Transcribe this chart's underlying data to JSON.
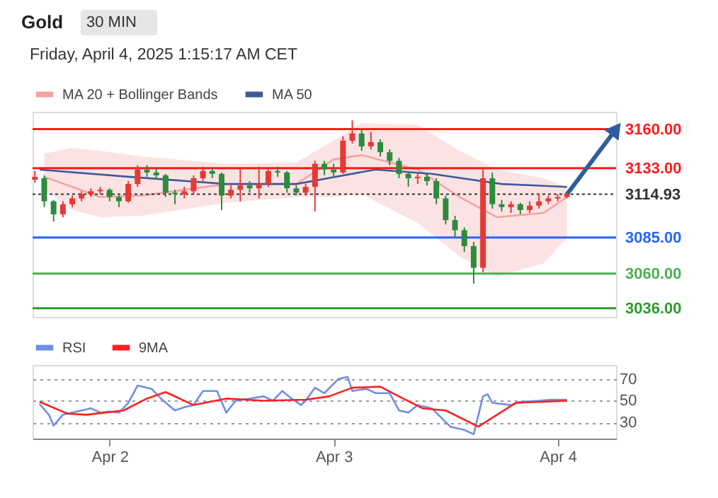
{
  "chart_data": [
    {
      "type": "candlestick",
      "title": "Gold",
      "subtitle": "Friday, April 4, 2025 1:15:17 AM CET",
      "annotations": [
        "30 MIN"
      ],
      "x": [
        "2025-04-01T16:00",
        "2025-04-01T17:00",
        "2025-04-01T18:00",
        "2025-04-01T19:00",
        "2025-04-01T20:00",
        "2025-04-01T21:00",
        "2025-04-01T22:00",
        "2025-04-01T23:00",
        "2025-04-02T00:00",
        "2025-04-02T01:00",
        "2025-04-02T02:00",
        "2025-04-02T03:00",
        "2025-04-02T04:00",
        "2025-04-02T05:00",
        "2025-04-02T06:00",
        "2025-04-02T07:00",
        "2025-04-02T08:00",
        "2025-04-02T09:00",
        "2025-04-02T10:00",
        "2025-04-02T11:00",
        "2025-04-02T12:00",
        "2025-04-02T13:00",
        "2025-04-02T14:00",
        "2025-04-02T15:00",
        "2025-04-02T16:00",
        "2025-04-02T17:00",
        "2025-04-02T18:00",
        "2025-04-02T19:00",
        "2025-04-02T20:00",
        "2025-04-02T21:00",
        "2025-04-02T22:00",
        "2025-04-02T23:00",
        "2025-04-03T00:00",
        "2025-04-03T01:00",
        "2025-04-03T02:00",
        "2025-04-03T03:00",
        "2025-04-03T04:00",
        "2025-04-03T05:00",
        "2025-04-03T06:00",
        "2025-04-03T07:00",
        "2025-04-03T08:00",
        "2025-04-03T09:00",
        "2025-04-03T10:00",
        "2025-04-03T11:00",
        "2025-04-03T12:00",
        "2025-04-03T13:00",
        "2025-04-03T14:00",
        "2025-04-03T15:00",
        "2025-04-03T16:00",
        "2025-04-03T17:00",
        "2025-04-03T18:00",
        "2025-04-03T19:00",
        "2025-04-03T20:00",
        "2025-04-03T21:00",
        "2025-04-03T22:00",
        "2025-04-03T23:00",
        "2025-04-04T00:00",
        "2025-04-04T01:00"
      ],
      "ohlc": [
        [
          3125,
          3131,
          3123,
          3127
        ],
        [
          3126,
          3128,
          3106,
          3110
        ],
        [
          3110,
          3111,
          3096,
          3101
        ],
        [
          3101,
          3110,
          3099,
          3108
        ],
        [
          3108,
          3114,
          3106,
          3112
        ],
        [
          3112,
          3117,
          3110,
          3115
        ],
        [
          3115,
          3119,
          3113,
          3117
        ],
        [
          3117,
          3120,
          3115,
          3118
        ],
        [
          3118,
          3119,
          3110,
          3113
        ],
        [
          3113,
          3114,
          3106,
          3110
        ],
        [
          3110,
          3124,
          3109,
          3122
        ],
        [
          3122,
          3135,
          3120,
          3132
        ],
        [
          3132,
          3135,
          3127,
          3130
        ],
        [
          3130,
          3133,
          3125,
          3128
        ],
        [
          3128,
          3129,
          3113,
          3116
        ],
        [
          3116,
          3118,
          3108,
          3115
        ],
        [
          3115,
          3120,
          3112,
          3117
        ],
        [
          3117,
          3128,
          3115,
          3126
        ],
        [
          3126,
          3134,
          3124,
          3131
        ],
        [
          3131,
          3133,
          3126,
          3129
        ],
        [
          3129,
          3130,
          3104,
          3114
        ],
        [
          3114,
          3121,
          3112,
          3118
        ],
        [
          3118,
          3133,
          3110,
          3121
        ],
        [
          3121,
          3124,
          3116,
          3119
        ],
        [
          3119,
          3134,
          3112,
          3122
        ],
        [
          3122,
          3133,
          3120,
          3131
        ],
        [
          3131,
          3134,
          3127,
          3130
        ],
        [
          3130,
          3131,
          3116,
          3119
        ],
        [
          3119,
          3121,
          3114,
          3116
        ],
        [
          3116,
          3122,
          3114,
          3120
        ],
        [
          3120,
          3138,
          3103,
          3136
        ],
        [
          3136,
          3138,
          3128,
          3132
        ],
        [
          3132,
          3136,
          3126,
          3130
        ],
        [
          3130,
          3155,
          3129,
          3152
        ],
        [
          3152,
          3166,
          3150,
          3157
        ],
        [
          3157,
          3160,
          3145,
          3148
        ],
        [
          3148,
          3158,
          3146,
          3151
        ],
        [
          3151,
          3153,
          3141,
          3144
        ],
        [
          3144,
          3146,
          3135,
          3138
        ],
        [
          3138,
          3140,
          3126,
          3129
        ],
        [
          3129,
          3131,
          3120,
          3126
        ],
        [
          3126,
          3130,
          3122,
          3127
        ],
        [
          3127,
          3129,
          3121,
          3124
        ],
        [
          3124,
          3126,
          3108,
          3112
        ],
        [
          3112,
          3114,
          3094,
          3097
        ],
        [
          3097,
          3100,
          3085,
          3090
        ],
        [
          3090,
          3092,
          3075,
          3079
        ],
        [
          3079,
          3082,
          3053,
          3064
        ],
        [
          3064,
          3133,
          3061,
          3126
        ],
        [
          3126,
          3130,
          3105,
          3108
        ],
        [
          3108,
          3111,
          3103,
          3106
        ],
        [
          3106,
          3110,
          3102,
          3108
        ],
        [
          3108,
          3109,
          3101,
          3104
        ],
        [
          3104,
          3110,
          3102,
          3107
        ],
        [
          3107,
          3115,
          3105,
          3110
        ],
        [
          3110,
          3114,
          3108,
          3112
        ],
        [
          3112,
          3115,
          3110,
          3113
        ],
        [
          3113,
          3116,
          3112,
          3114.93
        ]
      ],
      "colors": [
        "#e53935",
        "#2e8b3e",
        "#2e8b3e",
        "#e53935",
        "#e53935",
        "#e53935",
        "#e53935",
        "#e53935",
        "#2e8b3e",
        "#2e8b3e",
        "#e53935",
        "#e53935",
        "#2e8b3e",
        "#2e8b3e",
        "#2e8b3e",
        "#2e8b3e",
        "#e53935",
        "#e53935",
        "#e53935",
        "#2e8b3e",
        "#2e8b3e",
        "#e53935",
        "#e53935",
        "#2e8b3e",
        "#e53935",
        "#e53935",
        "#2e8b3e",
        "#2e8b3e",
        "#2e8b3e",
        "#e53935",
        "#e53935",
        "#2e8b3e",
        "#2e8b3e",
        "#e53935",
        "#e53935",
        "#2e8b3e",
        "#e53935",
        "#2e8b3e",
        "#2e8b3e",
        "#2e8b3e",
        "#2e8b3e",
        "#e53935",
        "#2e8b3e",
        "#2e8b3e",
        "#2e8b3e",
        "#2e8b3e",
        "#2e8b3e",
        "#2e8b3e",
        "#e53935",
        "#2e8b3e",
        "#2e8b3e",
        "#e53935",
        "#2e8b3e",
        "#e53935",
        "#e53935",
        "#e53935",
        "#e53935",
        "#e53935"
      ],
      "series": [
        {
          "name": "MA 20 + Bollinger Bands",
          "type": "line",
          "color": "#f4a3a3",
          "x": [
            "2025-04-01T17:00",
            "2025-04-01T20:00",
            "2025-04-01T23:00",
            "2025-04-02T03:30",
            "2025-04-02T12:30",
            "2025-04-02T20:00",
            "2025-04-03T00:00",
            "2025-04-03T03:00",
            "2025-04-03T09:00",
            "2025-04-03T13:30",
            "2025-04-03T17:30",
            "2025-04-03T22:30",
            "2025-04-04T01:00"
          ],
          "values": [
            3127,
            3120,
            3113,
            3114,
            3122,
            3122,
            3139,
            3142,
            3132,
            3113,
            3099,
            3102,
            3113
          ],
          "lower": [
            3118,
            3104,
            3099,
            3100,
            3109,
            3113,
            3113,
            3115,
            3095,
            3072,
            3058,
            3067,
            3085
          ],
          "upper": [
            3143,
            3147,
            3145,
            3141,
            3136,
            3137,
            3152,
            3164,
            3163,
            3145,
            3132,
            3126,
            3120
          ]
        },
        {
          "name": "MA 50",
          "type": "line",
          "color": "#3d5a99",
          "x": [
            "2025-04-01T16:30",
            "2025-04-02T02:00",
            "2025-04-02T12:30",
            "2025-04-02T20:00",
            "2025-04-03T04:30",
            "2025-04-03T10:30",
            "2025-04-03T18:00",
            "2025-04-04T01:00"
          ],
          "values": [
            3132,
            3127,
            3122,
            3122,
            3132,
            3129,
            3122,
            3120
          ]
        }
      ],
      "ref_lines": [
        {
          "axis": "y",
          "value": 3160,
          "color": "#ff1a1a",
          "line_style": "solid"
        },
        {
          "axis": "y",
          "value": 3133,
          "color": "#ff1a1a",
          "line_style": "solid"
        },
        {
          "axis": "y",
          "value": 3114.93,
          "color": "#333333",
          "line_style": "dotted"
        },
        {
          "axis": "y",
          "value": 3085,
          "color": "#2962ff",
          "line_style": "solid"
        },
        {
          "axis": "y",
          "value": 3060,
          "color": "#4caf50",
          "line_style": "solid"
        },
        {
          "axis": "y",
          "value": 3036,
          "color": "#2e9b2e",
          "line_style": "solid"
        }
      ],
      "xlim": [
        "2025-04-01T15:45",
        "2025-04-04T06:15"
      ],
      "ylim": [
        3030,
        3172
      ],
      "yticks": [
        {
          "value": 3160,
          "label": "3160.00"
        },
        {
          "value": 3133,
          "label": "3133.00"
        },
        {
          "value": 3114.93,
          "label": "3114.93"
        },
        {
          "value": 3085,
          "label": "3085.00"
        },
        {
          "value": 3060,
          "label": "3060.00"
        },
        {
          "value": 3036,
          "label": "3036.00"
        }
      ],
      "tick_labels": "y",
      "grid": false,
      "legend": "top left"
    },
    {
      "type": "line",
      "series": [
        {
          "name": "RSI",
          "color": "#6f8fe6",
          "x": [
            "2025-04-01T16:30",
            "2025-04-01T17:30",
            "2025-04-01T18:00",
            "2025-04-01T19:00",
            "2025-04-01T20:00",
            "2025-04-01T21:00",
            "2025-04-01T22:00",
            "2025-04-01T23:00",
            "2025-04-02T00:00",
            "2025-04-02T01:00",
            "2025-04-02T02:00",
            "2025-04-02T03:00",
            "2025-04-02T04:30",
            "2025-04-02T05:30",
            "2025-04-02T07:00",
            "2025-04-02T08:00",
            "2025-04-02T09:00",
            "2025-04-02T10:00",
            "2025-04-02T11:30",
            "2025-04-02T12:30",
            "2025-04-02T13:30",
            "2025-04-02T15:00",
            "2025-04-02T16:30",
            "2025-04-02T17:30",
            "2025-04-02T18:30",
            "2025-04-02T19:30",
            "2025-04-02T20:30",
            "2025-04-02T21:00",
            "2025-04-02T22:00",
            "2025-04-02T23:00",
            "2025-04-03T00:30",
            "2025-04-03T01:30",
            "2025-04-03T02:00",
            "2025-04-03T03:30",
            "2025-04-03T04:30",
            "2025-04-03T06:00",
            "2025-04-03T07:00",
            "2025-04-03T08:00",
            "2025-04-03T09:00",
            "2025-04-03T10:30",
            "2025-04-03T12:30",
            "2025-04-03T14:00",
            "2025-04-03T15:00",
            "2025-04-03T16:00",
            "2025-04-03T16:30",
            "2025-04-03T17:00",
            "2025-04-03T19:00",
            "2025-04-03T20:00",
            "2025-04-03T22:00",
            "2025-04-03T23:30",
            "2025-04-04T01:00"
          ],
          "values": [
            47,
            37,
            27,
            37,
            39,
            41,
            43,
            39,
            40,
            39,
            48,
            64,
            61,
            52,
            41,
            44,
            46,
            59,
            59,
            39,
            50,
            52,
            54,
            50,
            59,
            52,
            46,
            50,
            62,
            57,
            70,
            72,
            59,
            61,
            57,
            57,
            41,
            39,
            46,
            43,
            26,
            23,
            19,
            54,
            56,
            48,
            46,
            49,
            50,
            51,
            51
          ]
        },
        {
          "name": "9MA",
          "color": "#ff2020",
          "x": [
            "2025-04-01T16:30",
            "2025-04-01T19:30",
            "2025-04-01T21:30",
            "2025-04-02T01:30",
            "2025-04-02T04:00",
            "2025-04-02T06:00",
            "2025-04-02T09:00",
            "2025-04-02T12:30",
            "2025-04-02T16:30",
            "2025-04-02T21:00",
            "2025-04-02T23:30",
            "2025-04-03T02:00",
            "2025-04-03T05:00",
            "2025-04-03T07:00",
            "2025-04-03T09:30",
            "2025-04-03T12:00",
            "2025-04-03T15:30",
            "2025-04-03T19:30",
            "2025-04-04T01:00"
          ],
          "values": [
            49,
            38,
            37,
            41,
            52,
            58,
            46,
            52,
            50,
            51,
            54,
            62,
            63,
            54,
            43,
            41,
            26,
            48,
            50
          ]
        }
      ],
      "xlim": [
        "2025-04-01T15:45",
        "2025-04-04T06:15"
      ],
      "ylim": [
        15,
        83
      ],
      "xticks": [
        {
          "value": "2025-04-02",
          "label": "Apr 2"
        },
        {
          "value": "2025-04-03",
          "label": "Apr 3"
        },
        {
          "value": "2025-04-04",
          "label": "Apr 4"
        }
      ],
      "yticks": [
        30,
        50,
        70
      ],
      "grid": "y",
      "legend": "top left"
    }
  ]
}
